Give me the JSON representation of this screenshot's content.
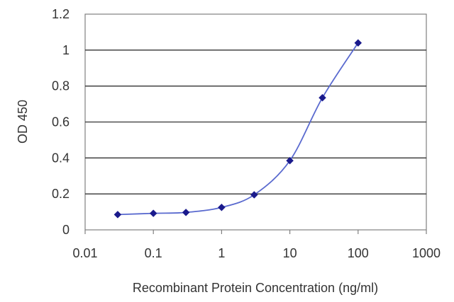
{
  "chart_data": {
    "type": "line",
    "xlabel": "Recombinant Protein Concentration (ng/ml)",
    "ylabel": "OD 450",
    "xscale": "log",
    "xlim": [
      0.01,
      1000
    ],
    "ylim": [
      0,
      1.2
    ],
    "x_tick_labels": [
      "0.01",
      "0.1",
      "1",
      "10",
      "100",
      "1000"
    ],
    "x_tick_values": [
      0.01,
      0.1,
      1,
      10,
      100,
      1000
    ],
    "y_tick_labels": [
      "0",
      "0.2",
      "0.4",
      "0.6",
      "0.8",
      "1",
      "1.2"
    ],
    "y_tick_values": [
      0,
      0.2,
      0.4,
      0.6,
      0.8,
      1.0,
      1.2
    ],
    "grid": "horizontal",
    "legend": "none",
    "series": [
      {
        "x": [
          0.03,
          0.1,
          0.3,
          1,
          3,
          10,
          30,
          100
        ],
        "y": [
          0.085,
          0.092,
          0.097,
          0.125,
          0.195,
          0.385,
          0.735,
          1.04
        ],
        "color": "#1a1a8c",
        "marker": "diamond"
      }
    ],
    "colors": {
      "plot_background": "#ffffff",
      "grid": "#333333",
      "frame": "#808080",
      "line": "#5a6acf",
      "marker": "#1a1a8c"
    }
  }
}
